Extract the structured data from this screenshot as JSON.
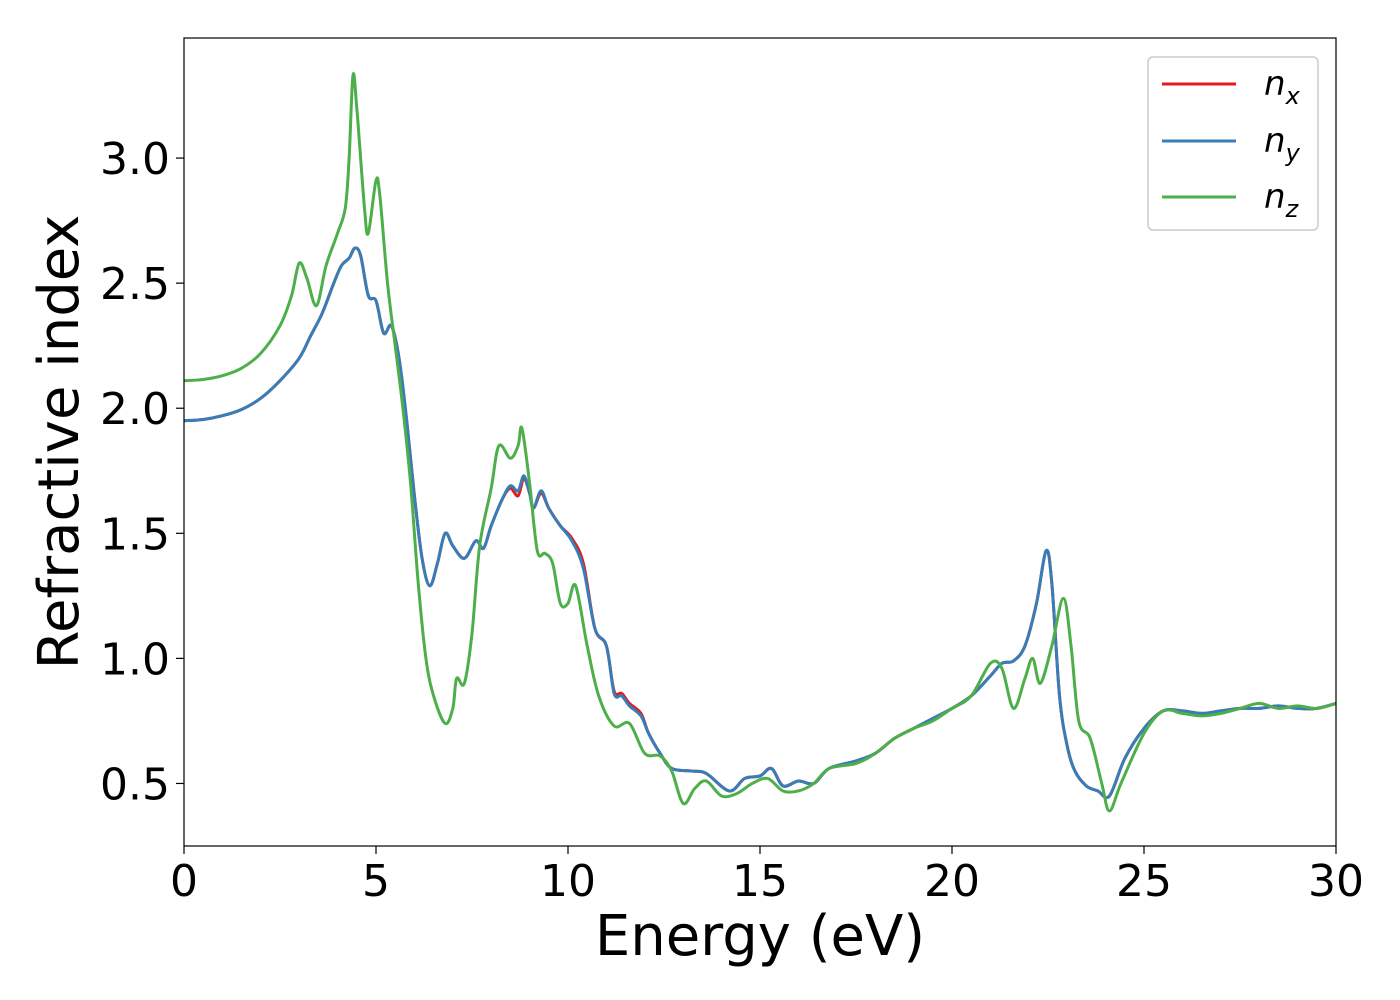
{
  "chart_data": {
    "type": "line",
    "title": "",
    "xlabel": "Energy (eV)",
    "ylabel": "Refractive index",
    "xlim": [
      0,
      30
    ],
    "ylim": [
      0.25,
      3.48
    ],
    "xticks": [
      0,
      5,
      10,
      15,
      20,
      25,
      30
    ],
    "yticks": [
      0.5,
      1.0,
      1.5,
      2.0,
      2.5,
      3.0
    ],
    "xtick_labels": [
      "0",
      "5",
      "10",
      "15",
      "20",
      "25",
      "30"
    ],
    "ytick_labels": [
      "0.5",
      "1.0",
      "1.5",
      "2.0",
      "2.5",
      "3.0"
    ],
    "grid": false,
    "legend_position": "top-right",
    "series": [
      {
        "name": "n_x",
        "legend_base": "n",
        "legend_sub": "x",
        "color": "#e41a1c",
        "points": [
          [
            0,
            1.95
          ],
          [
            0.5,
            1.955
          ],
          [
            1,
            1.97
          ],
          [
            1.5,
            1.995
          ],
          [
            2,
            2.04
          ],
          [
            2.5,
            2.11
          ],
          [
            3,
            2.2
          ],
          [
            3.3,
            2.29
          ],
          [
            3.6,
            2.38
          ],
          [
            3.9,
            2.5
          ],
          [
            4.1,
            2.57
          ],
          [
            4.3,
            2.6
          ],
          [
            4.45,
            2.64
          ],
          [
            4.6,
            2.61
          ],
          [
            4.8,
            2.45
          ],
          [
            5.0,
            2.43
          ],
          [
            5.2,
            2.3
          ],
          [
            5.4,
            2.33
          ],
          [
            5.6,
            2.2
          ],
          [
            5.8,
            1.95
          ],
          [
            6.0,
            1.65
          ],
          [
            6.2,
            1.4
          ],
          [
            6.4,
            1.29
          ],
          [
            6.6,
            1.38
          ],
          [
            6.8,
            1.5
          ],
          [
            7.0,
            1.45
          ],
          [
            7.3,
            1.4
          ],
          [
            7.6,
            1.47
          ],
          [
            7.8,
            1.44
          ],
          [
            8.0,
            1.53
          ],
          [
            8.3,
            1.64
          ],
          [
            8.5,
            1.68
          ],
          [
            8.7,
            1.65
          ],
          [
            8.85,
            1.72
          ],
          [
            9.0,
            1.66
          ],
          [
            9.1,
            1.6
          ],
          [
            9.3,
            1.66
          ],
          [
            9.5,
            1.6
          ],
          [
            9.8,
            1.53
          ],
          [
            10.1,
            1.48
          ],
          [
            10.4,
            1.38
          ],
          [
            10.7,
            1.12
          ],
          [
            11.0,
            1.05
          ],
          [
            11.2,
            0.87
          ],
          [
            11.4,
            0.86
          ],
          [
            11.6,
            0.82
          ],
          [
            11.9,
            0.78
          ],
          [
            12.1,
            0.7
          ],
          [
            12.4,
            0.62
          ],
          [
            12.7,
            0.56
          ],
          [
            13.2,
            0.55
          ],
          [
            13.6,
            0.54
          ],
          [
            14.2,
            0.47
          ],
          [
            14.6,
            0.52
          ],
          [
            15.0,
            0.53
          ],
          [
            15.3,
            0.56
          ],
          [
            15.6,
            0.49
          ],
          [
            16.0,
            0.51
          ],
          [
            16.4,
            0.5
          ],
          [
            16.8,
            0.56
          ],
          [
            17.5,
            0.59
          ],
          [
            18.0,
            0.62
          ],
          [
            18.5,
            0.68
          ],
          [
            19.0,
            0.72
          ],
          [
            19.5,
            0.76
          ],
          [
            20.0,
            0.8
          ],
          [
            20.5,
            0.85
          ],
          [
            21.0,
            0.93
          ],
          [
            21.3,
            0.98
          ],
          [
            21.6,
            0.99
          ],
          [
            21.9,
            1.05
          ],
          [
            22.2,
            1.22
          ],
          [
            22.45,
            1.43
          ],
          [
            22.6,
            1.3
          ],
          [
            22.8,
            0.85
          ],
          [
            23.0,
            0.65
          ],
          [
            23.2,
            0.55
          ],
          [
            23.5,
            0.49
          ],
          [
            23.8,
            0.47
          ],
          [
            24.1,
            0.45
          ],
          [
            24.5,
            0.6
          ],
          [
            25.0,
            0.72
          ],
          [
            25.5,
            0.79
          ],
          [
            26.0,
            0.79
          ],
          [
            26.5,
            0.78
          ],
          [
            27.0,
            0.79
          ],
          [
            27.5,
            0.8
          ],
          [
            28.0,
            0.8
          ],
          [
            28.5,
            0.81
          ],
          [
            29.0,
            0.8
          ],
          [
            29.5,
            0.8
          ],
          [
            30,
            0.82
          ]
        ]
      },
      {
        "name": "n_y",
        "legend_base": "n",
        "legend_sub": "y",
        "color": "#377eb8",
        "points": [
          [
            0,
            1.95
          ],
          [
            0.5,
            1.955
          ],
          [
            1,
            1.97
          ],
          [
            1.5,
            1.995
          ],
          [
            2,
            2.04
          ],
          [
            2.5,
            2.11
          ],
          [
            3,
            2.2
          ],
          [
            3.3,
            2.29
          ],
          [
            3.6,
            2.38
          ],
          [
            3.9,
            2.5
          ],
          [
            4.1,
            2.57
          ],
          [
            4.3,
            2.6
          ],
          [
            4.45,
            2.64
          ],
          [
            4.6,
            2.61
          ],
          [
            4.8,
            2.45
          ],
          [
            5.0,
            2.43
          ],
          [
            5.2,
            2.3
          ],
          [
            5.4,
            2.33
          ],
          [
            5.6,
            2.2
          ],
          [
            5.8,
            1.95
          ],
          [
            6.0,
            1.65
          ],
          [
            6.2,
            1.4
          ],
          [
            6.4,
            1.29
          ],
          [
            6.6,
            1.38
          ],
          [
            6.8,
            1.5
          ],
          [
            7.0,
            1.45
          ],
          [
            7.3,
            1.4
          ],
          [
            7.6,
            1.47
          ],
          [
            7.8,
            1.44
          ],
          [
            8.0,
            1.53
          ],
          [
            8.3,
            1.64
          ],
          [
            8.5,
            1.69
          ],
          [
            8.7,
            1.67
          ],
          [
            8.85,
            1.73
          ],
          [
            9.0,
            1.66
          ],
          [
            9.1,
            1.6
          ],
          [
            9.3,
            1.67
          ],
          [
            9.5,
            1.6
          ],
          [
            9.8,
            1.53
          ],
          [
            10.1,
            1.47
          ],
          [
            10.4,
            1.36
          ],
          [
            10.7,
            1.12
          ],
          [
            11.0,
            1.05
          ],
          [
            11.2,
            0.86
          ],
          [
            11.4,
            0.85
          ],
          [
            11.6,
            0.81
          ],
          [
            11.9,
            0.77
          ],
          [
            12.1,
            0.7
          ],
          [
            12.4,
            0.62
          ],
          [
            12.7,
            0.56
          ],
          [
            13.2,
            0.55
          ],
          [
            13.6,
            0.54
          ],
          [
            14.2,
            0.47
          ],
          [
            14.6,
            0.52
          ],
          [
            15.0,
            0.53
          ],
          [
            15.3,
            0.56
          ],
          [
            15.6,
            0.49
          ],
          [
            16.0,
            0.51
          ],
          [
            16.4,
            0.5
          ],
          [
            16.8,
            0.56
          ],
          [
            17.5,
            0.59
          ],
          [
            18.0,
            0.62
          ],
          [
            18.5,
            0.68
          ],
          [
            19.0,
            0.72
          ],
          [
            19.5,
            0.76
          ],
          [
            20.0,
            0.8
          ],
          [
            20.5,
            0.85
          ],
          [
            21.0,
            0.93
          ],
          [
            21.3,
            0.98
          ],
          [
            21.6,
            0.99
          ],
          [
            21.9,
            1.05
          ],
          [
            22.2,
            1.22
          ],
          [
            22.45,
            1.43
          ],
          [
            22.6,
            1.3
          ],
          [
            22.8,
            0.85
          ],
          [
            23.0,
            0.65
          ],
          [
            23.2,
            0.55
          ],
          [
            23.5,
            0.49
          ],
          [
            23.8,
            0.47
          ],
          [
            24.1,
            0.45
          ],
          [
            24.5,
            0.6
          ],
          [
            25.0,
            0.72
          ],
          [
            25.5,
            0.79
          ],
          [
            26.0,
            0.79
          ],
          [
            26.5,
            0.78
          ],
          [
            27.0,
            0.79
          ],
          [
            27.5,
            0.8
          ],
          [
            28.0,
            0.8
          ],
          [
            28.5,
            0.81
          ],
          [
            29.0,
            0.8
          ],
          [
            29.5,
            0.8
          ],
          [
            30,
            0.82
          ]
        ]
      },
      {
        "name": "n_z",
        "legend_base": "n",
        "legend_sub": "z",
        "color": "#4daf4a",
        "points": [
          [
            0,
            2.11
          ],
          [
            0.5,
            2.115
          ],
          [
            1,
            2.13
          ],
          [
            1.5,
            2.16
          ],
          [
            2,
            2.22
          ],
          [
            2.5,
            2.33
          ],
          [
            2.8,
            2.45
          ],
          [
            3.0,
            2.58
          ],
          [
            3.2,
            2.52
          ],
          [
            3.45,
            2.41
          ],
          [
            3.7,
            2.57
          ],
          [
            4.0,
            2.7
          ],
          [
            4.2,
            2.8
          ],
          [
            4.3,
            3.0
          ],
          [
            4.4,
            3.33
          ],
          [
            4.5,
            3.2
          ],
          [
            4.7,
            2.8
          ],
          [
            4.8,
            2.7
          ],
          [
            5.0,
            2.91
          ],
          [
            5.1,
            2.85
          ],
          [
            5.3,
            2.5
          ],
          [
            5.5,
            2.25
          ],
          [
            5.7,
            2.0
          ],
          [
            5.9,
            1.7
          ],
          [
            6.1,
            1.3
          ],
          [
            6.3,
            1.0
          ],
          [
            6.5,
            0.85
          ],
          [
            6.8,
            0.74
          ],
          [
            7.0,
            0.8
          ],
          [
            7.1,
            0.92
          ],
          [
            7.3,
            0.9
          ],
          [
            7.5,
            1.1
          ],
          [
            7.7,
            1.45
          ],
          [
            8.0,
            1.68
          ],
          [
            8.2,
            1.85
          ],
          [
            8.5,
            1.8
          ],
          [
            8.7,
            1.85
          ],
          [
            8.8,
            1.92
          ],
          [
            9.0,
            1.7
          ],
          [
            9.2,
            1.43
          ],
          [
            9.4,
            1.42
          ],
          [
            9.6,
            1.38
          ],
          [
            9.8,
            1.22
          ],
          [
            10.0,
            1.22
          ],
          [
            10.2,
            1.29
          ],
          [
            10.5,
            1.05
          ],
          [
            10.8,
            0.85
          ],
          [
            11.2,
            0.73
          ],
          [
            11.6,
            0.74
          ],
          [
            12.0,
            0.62
          ],
          [
            12.4,
            0.61
          ],
          [
            12.7,
            0.55
          ],
          [
            13.0,
            0.42
          ],
          [
            13.3,
            0.48
          ],
          [
            13.6,
            0.51
          ],
          [
            14.0,
            0.45
          ],
          [
            14.4,
            0.46
          ],
          [
            14.8,
            0.5
          ],
          [
            15.2,
            0.52
          ],
          [
            15.6,
            0.47
          ],
          [
            16.0,
            0.47
          ],
          [
            16.4,
            0.5
          ],
          [
            16.8,
            0.56
          ],
          [
            17.5,
            0.58
          ],
          [
            18.0,
            0.62
          ],
          [
            18.5,
            0.68
          ],
          [
            19.0,
            0.72
          ],
          [
            19.5,
            0.75
          ],
          [
            20.0,
            0.8
          ],
          [
            20.5,
            0.85
          ],
          [
            21.0,
            0.98
          ],
          [
            21.3,
            0.96
          ],
          [
            21.6,
            0.8
          ],
          [
            21.9,
            0.92
          ],
          [
            22.1,
            1.0
          ],
          [
            22.3,
            0.9
          ],
          [
            22.6,
            1.05
          ],
          [
            22.9,
            1.24
          ],
          [
            23.1,
            1.05
          ],
          [
            23.3,
            0.75
          ],
          [
            23.6,
            0.68
          ],
          [
            23.9,
            0.5
          ],
          [
            24.1,
            0.39
          ],
          [
            24.4,
            0.5
          ],
          [
            25.0,
            0.7
          ],
          [
            25.5,
            0.79
          ],
          [
            26.0,
            0.78
          ],
          [
            26.5,
            0.77
          ],
          [
            27.0,
            0.78
          ],
          [
            27.5,
            0.8
          ],
          [
            28.0,
            0.82
          ],
          [
            28.5,
            0.8
          ],
          [
            29.0,
            0.81
          ],
          [
            29.5,
            0.8
          ],
          [
            30,
            0.82
          ]
        ]
      }
    ]
  }
}
